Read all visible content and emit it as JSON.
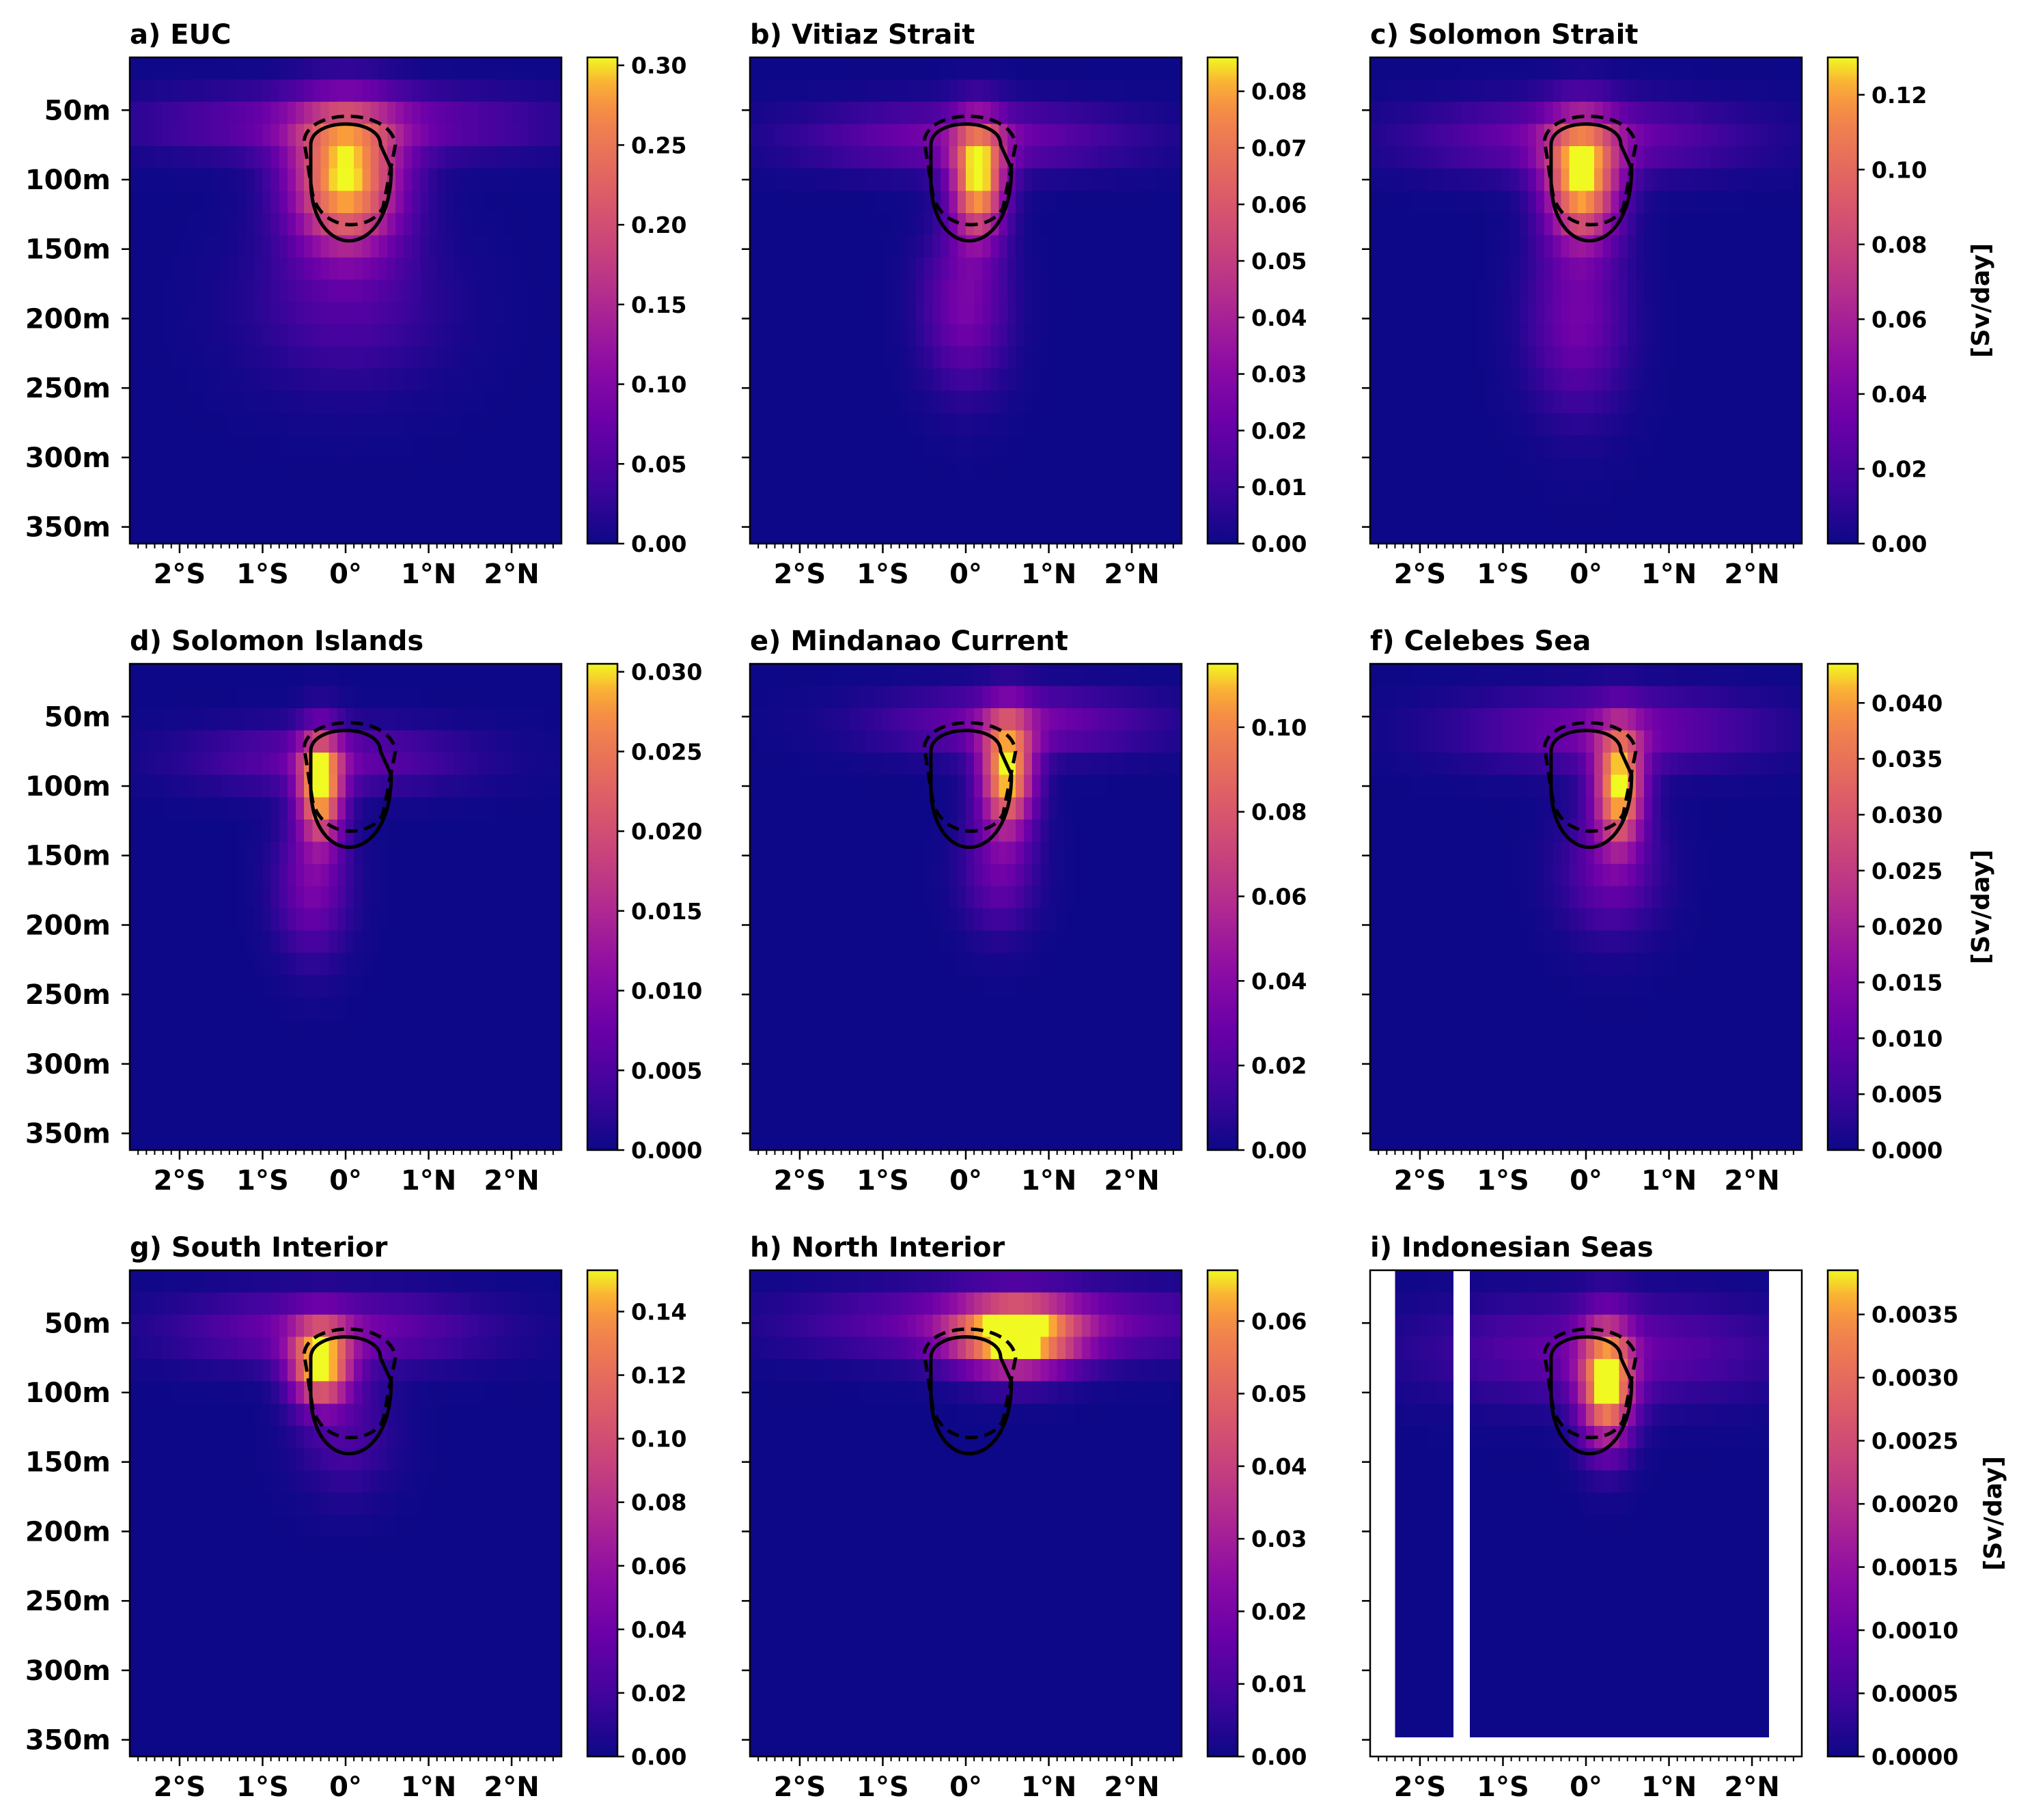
{
  "colormap": "plasma",
  "chart_data": [
    {
      "type": "heatmap",
      "title": "a) EUC",
      "cbar_ticks": [
        "0.00",
        "0.05",
        "0.10",
        "0.15",
        "0.20",
        "0.25",
        "0.30"
      ],
      "vmax": 0.305,
      "blobs": [
        {
          "lat": 0.0,
          "depth": 100,
          "slat": 0.45,
          "sdep": 35,
          "amp": 1.0
        },
        {
          "lat": 0.0,
          "depth": 60,
          "slat": 1.6,
          "sdep": 16,
          "amp": 0.3
        },
        {
          "lat": 0.0,
          "depth": 190,
          "slat": 0.8,
          "sdep": 40,
          "amp": 0.16
        }
      ],
      "unit": ""
    },
    {
      "type": "heatmap",
      "title": "b) Vitiaz Strait",
      "cbar_ticks": [
        "0.00",
        "0.01",
        "0.02",
        "0.03",
        "0.04",
        "0.05",
        "0.06",
        "0.07",
        "0.08"
      ],
      "vmax": 0.086,
      "blobs": [
        {
          "lat": 0.15,
          "depth": 100,
          "slat": 0.22,
          "sdep": 28,
          "amp": 1.0
        },
        {
          "lat": 0.0,
          "depth": 70,
          "slat": 1.3,
          "sdep": 16,
          "amp": 0.3
        },
        {
          "lat": 0.0,
          "depth": 190,
          "slat": 0.35,
          "sdep": 40,
          "amp": 0.3
        }
      ],
      "unit": ""
    },
    {
      "type": "heatmap",
      "title": "c) Solomon Strait",
      "cbar_ticks": [
        "0.00",
        "0.02",
        "0.04",
        "0.06",
        "0.08",
        "0.10",
        "0.12"
      ],
      "vmax": 0.13,
      "blobs": [
        {
          "lat": -0.05,
          "depth": 100,
          "slat": 0.3,
          "sdep": 30,
          "amp": 1.0
        },
        {
          "lat": -0.1,
          "depth": 70,
          "slat": 1.3,
          "sdep": 18,
          "amp": 0.3
        },
        {
          "lat": -0.1,
          "depth": 200,
          "slat": 0.4,
          "sdep": 45,
          "amp": 0.28
        }
      ],
      "unit": "[Sv/day]"
    },
    {
      "type": "heatmap",
      "title": "d) Solomon Islands",
      "cbar_ticks": [
        "0.000",
        "0.005",
        "0.010",
        "0.015",
        "0.020",
        "0.025",
        "0.030"
      ],
      "vmax": 0.0305,
      "blobs": [
        {
          "lat": -0.3,
          "depth": 100,
          "slat": 0.18,
          "sdep": 26,
          "amp": 1.0
        },
        {
          "lat": -0.2,
          "depth": 80,
          "slat": 1.1,
          "sdep": 16,
          "amp": 0.25
        },
        {
          "lat": -0.4,
          "depth": 170,
          "slat": 0.3,
          "sdep": 35,
          "amp": 0.3
        }
      ],
      "unit": ""
    },
    {
      "type": "heatmap",
      "title": "e) Mindanao Current",
      "cbar_ticks": [
        "0.00",
        "0.02",
        "0.04",
        "0.06",
        "0.08",
        "0.10"
      ],
      "vmax": 0.115,
      "blobs": [
        {
          "lat": 0.5,
          "depth": 90,
          "slat": 0.22,
          "sdep": 28,
          "amp": 1.0
        },
        {
          "lat": 0.6,
          "depth": 55,
          "slat": 1.1,
          "sdep": 16,
          "amp": 0.3
        },
        {
          "lat": 0.4,
          "depth": 160,
          "slat": 0.3,
          "sdep": 30,
          "amp": 0.25
        }
      ],
      "unit": ""
    },
    {
      "type": "heatmap",
      "title": "f) Celebes Sea",
      "cbar_ticks": [
        "0.000",
        "0.005",
        "0.010",
        "0.015",
        "0.020",
        "0.025",
        "0.030",
        "0.035",
        "0.040"
      ],
      "vmax": 0.0435,
      "blobs": [
        {
          "lat": 0.4,
          "depth": 100,
          "slat": 0.2,
          "sdep": 28,
          "amp": 1.0
        },
        {
          "lat": 0.3,
          "depth": 60,
          "slat": 1.2,
          "sdep": 18,
          "amp": 0.3
        },
        {
          "lat": 0.3,
          "depth": 160,
          "slat": 0.4,
          "sdep": 32,
          "amp": 0.25
        }
      ],
      "unit": "[Sv/day]"
    },
    {
      "type": "heatmap",
      "title": "g) South Interior",
      "cbar_ticks": [
        "0.00",
        "0.02",
        "0.04",
        "0.06",
        "0.08",
        "0.10",
        "0.12",
        "0.14"
      ],
      "vmax": 0.153,
      "blobs": [
        {
          "lat": -0.3,
          "depth": 80,
          "slat": 0.25,
          "sdep": 20,
          "amp": 1.0
        },
        {
          "lat": -0.2,
          "depth": 55,
          "slat": 1.2,
          "sdep": 18,
          "amp": 0.3
        },
        {
          "lat": 0.0,
          "depth": 130,
          "slat": 0.4,
          "sdep": 30,
          "amp": 0.15
        }
      ],
      "unit": ""
    },
    {
      "type": "heatmap",
      "title": "h) North Interior",
      "cbar_ticks": [
        "0.00",
        "0.01",
        "0.02",
        "0.03",
        "0.04",
        "0.05",
        "0.06"
      ],
      "vmax": 0.067,
      "blobs": [
        {
          "lat": 0.6,
          "depth": 60,
          "slat": 0.5,
          "sdep": 18,
          "amp": 1.0
        },
        {
          "lat": 0.6,
          "depth": 50,
          "slat": 1.6,
          "sdep": 18,
          "amp": 0.35
        }
      ],
      "unit": ""
    },
    {
      "type": "heatmap",
      "title": "i) Indonesian Seas",
      "cbar_ticks": [
        "0.0000",
        "0.0005",
        "0.0010",
        "0.0015",
        "0.0020",
        "0.0025",
        "0.0030",
        "0.0035"
      ],
      "vmax": 0.00385,
      "blobs": [
        {
          "lat": 0.25,
          "depth": 95,
          "slat": 0.22,
          "sdep": 30,
          "amp": 1.0
        },
        {
          "lat": 0.2,
          "depth": 70,
          "slat": 1.4,
          "sdep": 25,
          "amp": 0.25
        }
      ],
      "missing": {
        "lat_min": -2.25,
        "lat_max": 2.25,
        "depth_max": 340,
        "gaps": [
          [
            -2.44,
            -2.3
          ],
          [
            -1.64,
            -1.55
          ],
          [
            -1.45,
            -1.36
          ]
        ]
      },
      "unit": "[Sv/day]"
    }
  ],
  "axes": {
    "y_ticks": [
      {
        "v": 50,
        "label": "50m"
      },
      {
        "v": 100,
        "label": "100m"
      },
      {
        "v": 150,
        "label": "150m"
      },
      {
        "v": 200,
        "label": "200m"
      },
      {
        "v": 250,
        "label": "250m"
      },
      {
        "v": 300,
        "label": "300m"
      },
      {
        "v": 350,
        "label": "350m"
      }
    ],
    "x_ticks": [
      {
        "v": -2,
        "label": "2°S"
      },
      {
        "v": -1,
        "label": "1°S"
      },
      {
        "v": 0,
        "label": "0°"
      },
      {
        "v": 1,
        "label": "1°N"
      },
      {
        "v": 2,
        "label": "2°N"
      }
    ],
    "xlim": [
      -2.6,
      2.6
    ],
    "ylim": [
      362,
      12
    ]
  }
}
